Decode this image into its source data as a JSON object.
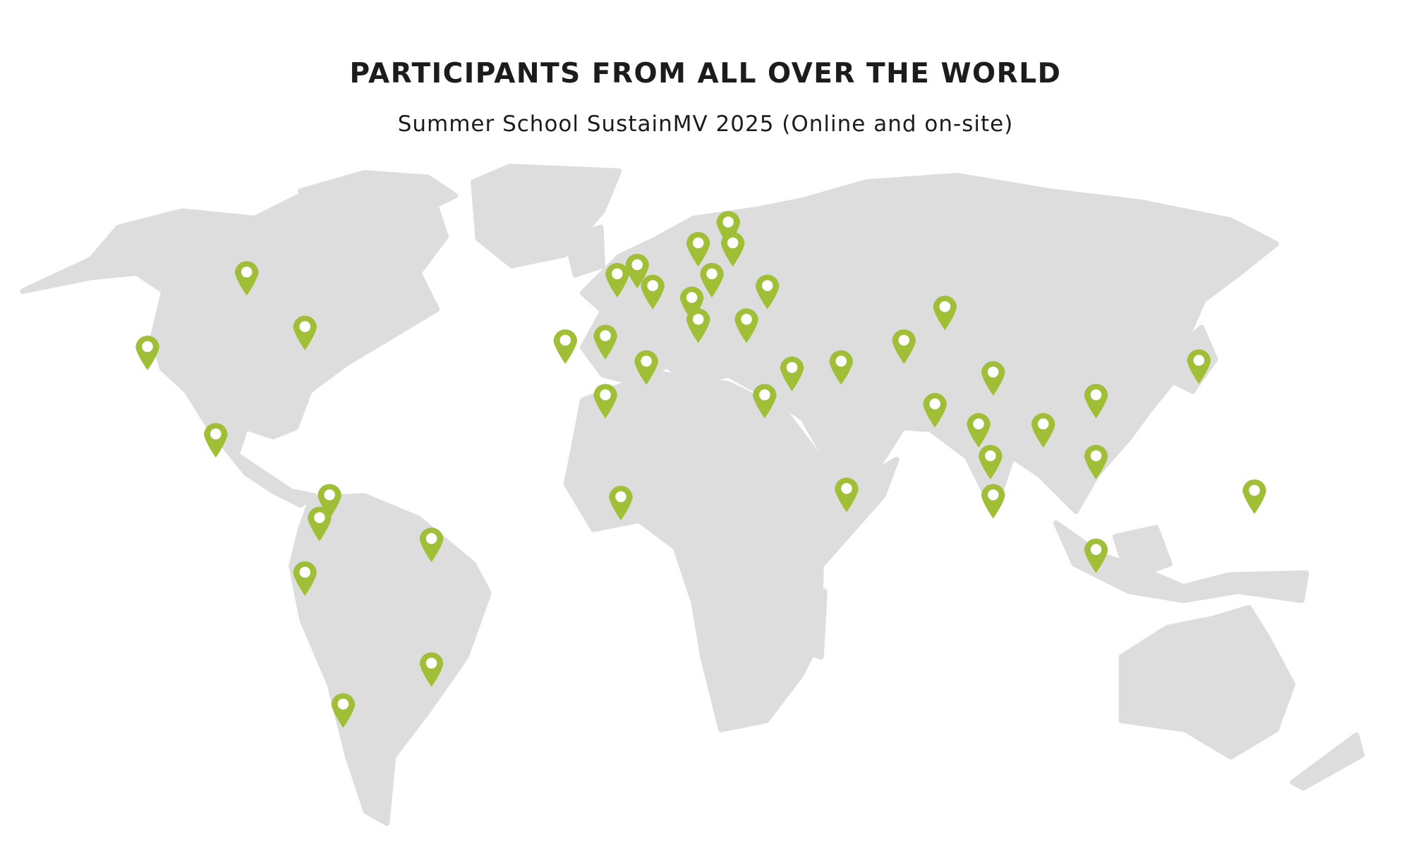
{
  "header": {
    "title": "PARTICIPANTS FROM ALL OVER THE WORLD",
    "subtitle": "Summer School SustainMV 2025 (Online and on-site)"
  },
  "map": {
    "land_color": "#dddddd",
    "marker_color": "#a0bf37",
    "marker_icon": "map-pin-icon",
    "marker_count": 45
  }
}
